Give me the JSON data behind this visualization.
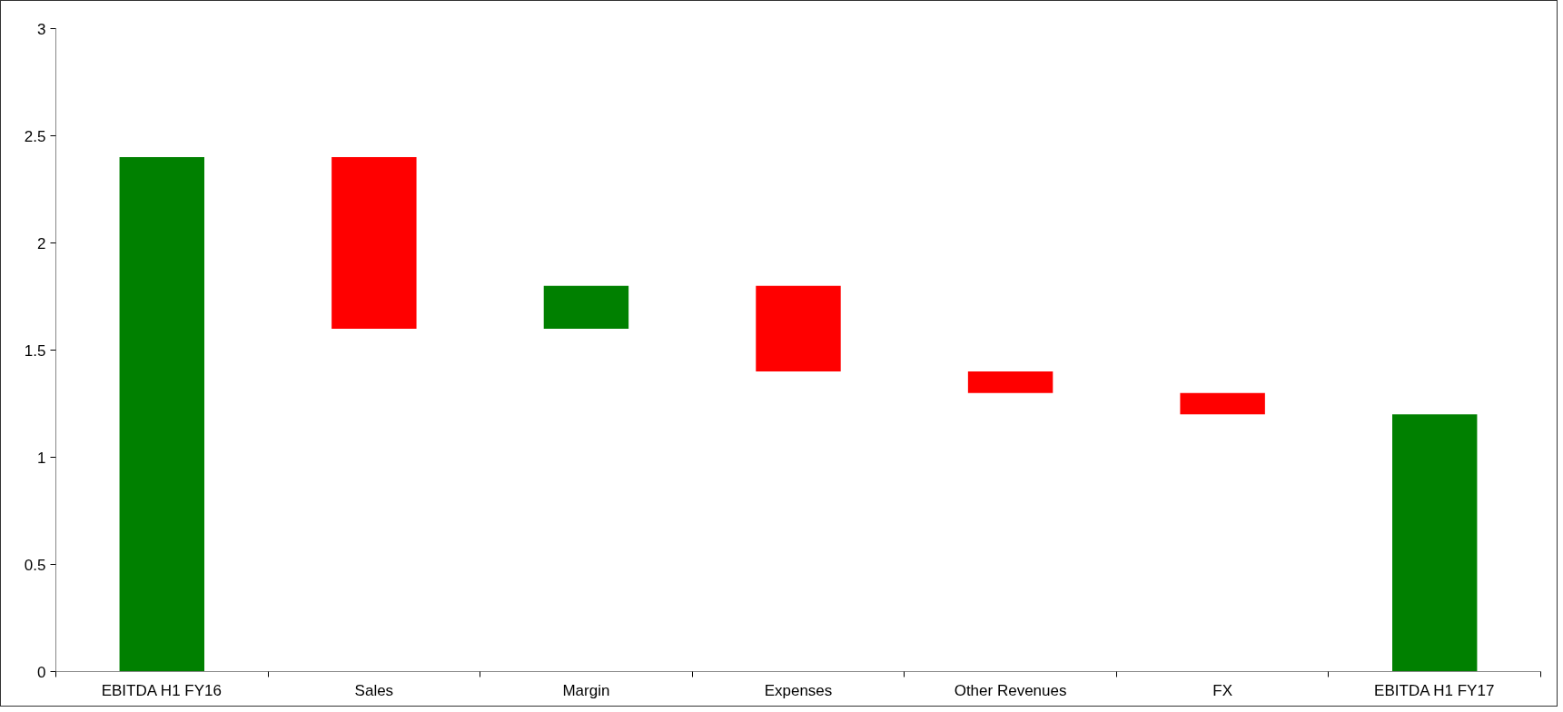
{
  "chart_data": {
    "type": "bar",
    "categories": [
      "EBITDA H1 FY16",
      "Sales",
      "Margin",
      "Expenses",
      "Other Revenues",
      "FX",
      "EBITDA H1 FY17"
    ],
    "base": [
      0,
      2.4,
      1.6,
      1.8,
      1.4,
      1.3,
      0
    ],
    "values": [
      2.4,
      -0.8,
      0.2,
      -0.4,
      -0.1,
      -0.1,
      1.2
    ],
    "colors": [
      "#008000",
      "#ff0000",
      "#008000",
      "#ff0000",
      "#ff0000",
      "#ff0000",
      "#008000"
    ],
    "ylim": [
      0,
      3
    ],
    "yticks": [
      0,
      0.5,
      1,
      1.5,
      2,
      2.5,
      3
    ],
    "grid": false
  }
}
